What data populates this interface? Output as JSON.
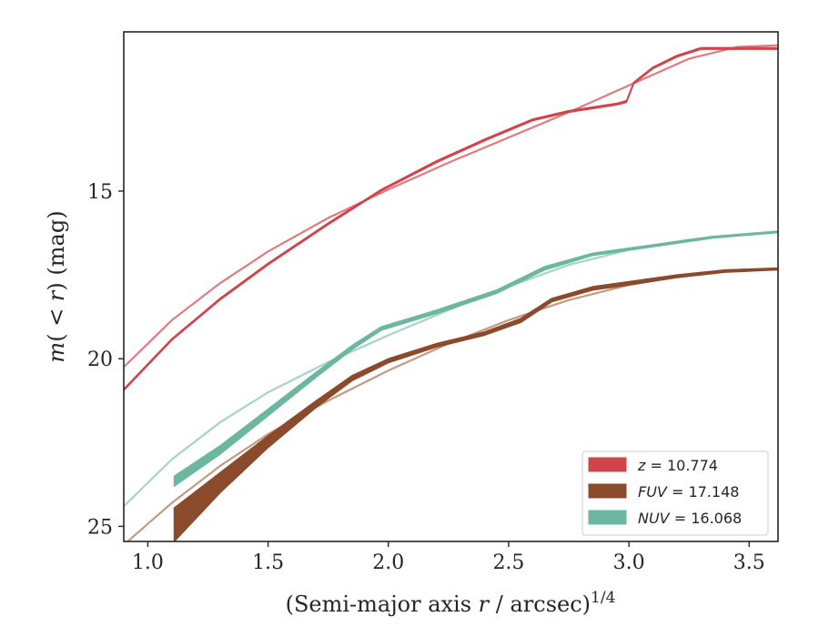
{
  "chart_data": {
    "type": "line",
    "xlabel": "(Semi-major axis r / arcsec)^1/4",
    "ylabel": "m(<r) (mag)",
    "xlim": [
      0.9,
      3.62
    ],
    "ylim": [
      25.45,
      10.25
    ],
    "y_inverted": true,
    "x_ticks": [
      "1.0",
      "1.5",
      "2.0",
      "2.5",
      "3.0",
      "3.5"
    ],
    "y_ticks": [
      "15",
      "20",
      "25"
    ],
    "grid": false,
    "legend_position": "bottom-right",
    "series": [
      {
        "name": "z = 10.774",
        "band": "z",
        "label_value": "10.774",
        "color": "#d1444b",
        "model_color": "#e07b80",
        "observed_upper": [
          [
            0.9,
            20.9
          ],
          [
            1.1,
            19.4
          ],
          [
            1.3,
            18.2
          ],
          [
            1.5,
            17.15
          ],
          [
            1.75,
            15.95
          ],
          [
            1.97,
            14.95
          ],
          [
            2.2,
            14.1
          ],
          [
            2.4,
            13.45
          ],
          [
            2.6,
            12.85
          ],
          [
            2.75,
            12.6
          ],
          [
            2.95,
            12.38
          ],
          [
            2.99,
            12.3
          ],
          [
            3.02,
            11.75
          ],
          [
            3.1,
            11.3
          ],
          [
            3.2,
            10.95
          ],
          [
            3.3,
            10.72
          ],
          [
            3.4,
            10.72
          ],
          [
            3.62,
            10.72
          ]
        ],
        "observed_lower": [
          [
            0.9,
            20.95
          ],
          [
            1.1,
            19.45
          ],
          [
            1.3,
            18.25
          ],
          [
            1.5,
            17.2
          ],
          [
            1.75,
            16.0
          ],
          [
            1.97,
            15.0
          ],
          [
            2.2,
            14.15
          ],
          [
            2.4,
            13.5
          ],
          [
            2.6,
            12.9
          ],
          [
            2.75,
            12.65
          ],
          [
            2.95,
            12.43
          ],
          [
            2.99,
            12.35
          ],
          [
            3.02,
            11.8
          ],
          [
            3.1,
            11.35
          ],
          [
            3.2,
            11.0
          ],
          [
            3.3,
            10.77
          ],
          [
            3.4,
            10.77
          ],
          [
            3.62,
            10.77
          ]
        ],
        "model": [
          [
            0.9,
            20.25
          ],
          [
            1.1,
            18.85
          ],
          [
            1.3,
            17.75
          ],
          [
            1.5,
            16.8
          ],
          [
            1.75,
            15.8
          ],
          [
            2.0,
            14.95
          ],
          [
            2.25,
            14.15
          ],
          [
            2.5,
            13.4
          ],
          [
            2.75,
            12.65
          ],
          [
            3.0,
            11.85
          ],
          [
            3.25,
            11.05
          ],
          [
            3.45,
            10.7
          ],
          [
            3.62,
            10.65
          ]
        ]
      },
      {
        "name": "FUV = 17.148",
        "band": "FUV",
        "label_value": "17.148",
        "color": "#8b4a2b",
        "model_color": "#c49a82",
        "observed_upper": [
          [
            1.11,
            24.45
          ],
          [
            1.3,
            23.4
          ],
          [
            1.5,
            22.3
          ],
          [
            1.7,
            21.25
          ],
          [
            1.85,
            20.5
          ],
          [
            2.0,
            20.0
          ],
          [
            2.2,
            19.55
          ],
          [
            2.4,
            19.2
          ],
          [
            2.55,
            18.8
          ],
          [
            2.68,
            18.2
          ],
          [
            2.85,
            17.85
          ],
          [
            3.0,
            17.7
          ],
          [
            3.2,
            17.5
          ],
          [
            3.4,
            17.35
          ],
          [
            3.62,
            17.3
          ]
        ],
        "observed_lower": [
          [
            1.11,
            25.45
          ],
          [
            1.3,
            24.0
          ],
          [
            1.5,
            22.65
          ],
          [
            1.7,
            21.45
          ],
          [
            1.85,
            20.65
          ],
          [
            2.0,
            20.12
          ],
          [
            2.2,
            19.65
          ],
          [
            2.4,
            19.3
          ],
          [
            2.55,
            18.92
          ],
          [
            2.68,
            18.3
          ],
          [
            2.85,
            17.95
          ],
          [
            3.0,
            17.8
          ],
          [
            3.2,
            17.58
          ],
          [
            3.4,
            17.42
          ],
          [
            3.62,
            17.35
          ]
        ],
        "model": [
          [
            0.9,
            25.55
          ],
          [
            1.1,
            24.3
          ],
          [
            1.3,
            23.2
          ],
          [
            1.5,
            22.25
          ],
          [
            1.75,
            21.25
          ],
          [
            2.0,
            20.35
          ],
          [
            2.25,
            19.55
          ],
          [
            2.5,
            18.85
          ],
          [
            2.75,
            18.25
          ],
          [
            3.0,
            17.8
          ],
          [
            3.25,
            17.5
          ],
          [
            3.45,
            17.35
          ],
          [
            3.62,
            17.3
          ]
        ]
      },
      {
        "name": "NUV = 16.068",
        "band": "NUV",
        "label_value": "16.068",
        "color": "#6cb7a0",
        "model_color": "#a6d4c5",
        "observed_upper": [
          [
            1.11,
            23.5
          ],
          [
            1.3,
            22.6
          ],
          [
            1.5,
            21.5
          ],
          [
            1.7,
            20.4
          ],
          [
            1.85,
            19.6
          ],
          [
            1.97,
            19.05
          ],
          [
            2.2,
            18.55
          ],
          [
            2.45,
            17.95
          ],
          [
            2.65,
            17.25
          ],
          [
            2.85,
            16.85
          ],
          [
            3.1,
            16.6
          ],
          [
            3.35,
            16.35
          ],
          [
            3.62,
            16.2
          ]
        ],
        "observed_lower": [
          [
            1.11,
            23.8
          ],
          [
            1.3,
            22.85
          ],
          [
            1.5,
            21.7
          ],
          [
            1.7,
            20.55
          ],
          [
            1.85,
            19.72
          ],
          [
            1.97,
            19.15
          ],
          [
            2.2,
            18.65
          ],
          [
            2.45,
            18.05
          ],
          [
            2.65,
            17.35
          ],
          [
            2.85,
            16.92
          ],
          [
            3.1,
            16.66
          ],
          [
            3.35,
            16.4
          ],
          [
            3.62,
            16.24
          ]
        ],
        "model": [
          [
            0.9,
            24.4
          ],
          [
            1.1,
            23.0
          ],
          [
            1.3,
            21.9
          ],
          [
            1.5,
            21.0
          ],
          [
            1.75,
            20.1
          ],
          [
            2.0,
            19.3
          ],
          [
            2.25,
            18.55
          ],
          [
            2.5,
            17.85
          ],
          [
            2.75,
            17.2
          ],
          [
            3.0,
            16.75
          ],
          [
            3.25,
            16.45
          ],
          [
            3.45,
            16.3
          ],
          [
            3.62,
            16.2
          ]
        ]
      }
    ]
  }
}
